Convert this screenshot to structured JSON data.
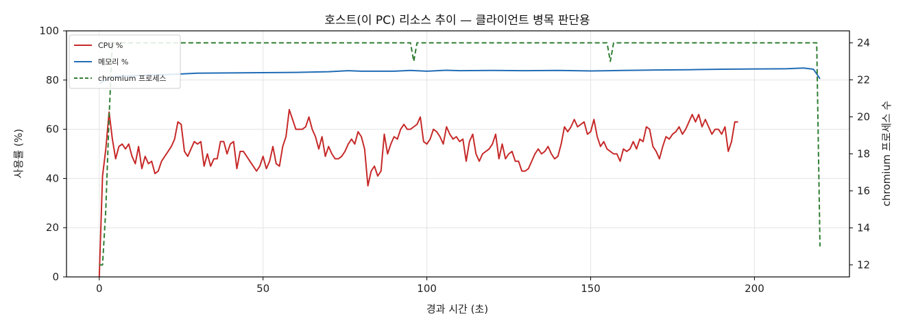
{
  "chart_data": {
    "type": "line",
    "title": "호스트(이 PC) 리소스 추이 — 클라이언트 병목 판단용",
    "xlabel": "경과 시간 (초)",
    "ylabel": "사용률 (%)",
    "y2label": "chromium 프로세스 수",
    "xlim": [
      -10,
      229
    ],
    "ylim": [
      0,
      100
    ],
    "y2lim": [
      11.35,
      24.65
    ],
    "xticks": [
      0,
      50,
      100,
      150,
      200
    ],
    "yticks": [
      0,
      20,
      40,
      60,
      80,
      100
    ],
    "y2ticks": [
      12,
      14,
      16,
      18,
      20,
      22,
      24
    ],
    "grid": true,
    "legend_position": "top-left",
    "colors": {
      "cpu": "#c62828",
      "memory": "#1f6bb5",
      "chromium": "#2e7d32"
    },
    "series": [
      {
        "name": "CPU %",
        "axis": "left",
        "style": "solid",
        "color": "#c62828",
        "x_start": 0,
        "x_step": 1,
        "values": [
          0,
          41,
          52,
          67,
          56,
          48,
          53,
          54,
          52,
          54,
          49,
          46,
          53,
          44,
          49,
          46,
          47,
          42,
          43,
          47,
          49,
          51,
          53,
          56,
          63,
          62,
          51,
          49,
          52,
          55,
          54,
          55,
          45,
          50,
          45,
          48,
          48,
          55,
          55,
          50,
          54,
          55,
          44,
          51,
          51,
          49,
          47,
          45,
          43,
          45,
          49,
          44,
          47,
          53,
          46,
          45,
          53,
          57,
          68,
          64,
          60,
          60,
          60,
          61,
          65,
          60,
          57,
          52,
          57,
          49,
          53,
          50,
          48,
          48,
          49,
          51,
          54,
          56,
          54,
          59,
          57,
          52,
          37,
          43,
          45,
          41,
          43,
          58,
          50,
          54,
          57,
          56,
          60,
          62,
          60,
          60,
          61,
          62,
          65,
          55,
          54,
          56,
          60,
          59,
          57,
          54,
          61,
          58,
          56,
          57,
          55,
          56,
          47,
          55,
          58,
          50,
          47,
          50,
          51,
          52,
          54,
          58,
          48,
          54,
          48,
          50,
          51,
          47,
          47,
          43,
          43,
          44,
          47,
          50,
          52,
          50,
          51,
          53,
          50,
          48,
          49,
          54,
          61,
          59,
          61,
          64,
          61,
          62,
          63,
          58,
          59,
          64,
          57,
          53,
          55,
          52,
          51,
          50,
          50,
          47,
          52,
          51,
          52,
          55,
          52,
          56,
          55,
          61,
          60,
          53,
          51,
          48,
          53,
          57,
          56,
          58,
          59,
          61,
          58,
          60,
          63,
          66,
          63,
          66,
          61,
          64,
          61,
          58,
          60,
          60,
          58,
          61,
          51,
          55,
          63,
          63
        ]
      },
      {
        "name": "메모리 %",
        "axis": "left",
        "style": "solid",
        "color": "#1f6bb5",
        "points": [
          [
            0,
            78.5
          ],
          [
            2,
            80
          ],
          [
            5,
            81.5
          ],
          [
            10,
            81.8
          ],
          [
            20,
            82.2
          ],
          [
            25,
            82.5
          ],
          [
            30,
            82.8
          ],
          [
            40,
            82.9
          ],
          [
            50,
            83.0
          ],
          [
            60,
            83.1
          ],
          [
            70,
            83.4
          ],
          [
            76,
            83.8
          ],
          [
            80,
            83.6
          ],
          [
            90,
            83.6
          ],
          [
            95,
            83.9
          ],
          [
            100,
            83.6
          ],
          [
            106,
            84.0
          ],
          [
            110,
            83.8
          ],
          [
            120,
            83.9
          ],
          [
            130,
            83.8
          ],
          [
            140,
            83.9
          ],
          [
            150,
            83.7
          ],
          [
            160,
            83.9
          ],
          [
            170,
            84.1
          ],
          [
            180,
            84.2
          ],
          [
            190,
            84.4
          ],
          [
            200,
            84.5
          ],
          [
            210,
            84.6
          ],
          [
            215,
            84.9
          ],
          [
            218,
            84.4
          ],
          [
            219,
            82.5
          ],
          [
            220,
            80.5
          ]
        ]
      },
      {
        "name": "chromium 프로세스",
        "axis": "right",
        "style": "dashed",
        "color": "#2e7d32",
        "points": [
          [
            0,
            12
          ],
          [
            1,
            12
          ],
          [
            2,
            15
          ],
          [
            3,
            20
          ],
          [
            4,
            24
          ],
          [
            95,
            24
          ],
          [
            96,
            23
          ],
          [
            97,
            24
          ],
          [
            155,
            24
          ],
          [
            156,
            23
          ],
          [
            157,
            24
          ],
          [
            219,
            24
          ],
          [
            220,
            13
          ]
        ]
      }
    ]
  }
}
